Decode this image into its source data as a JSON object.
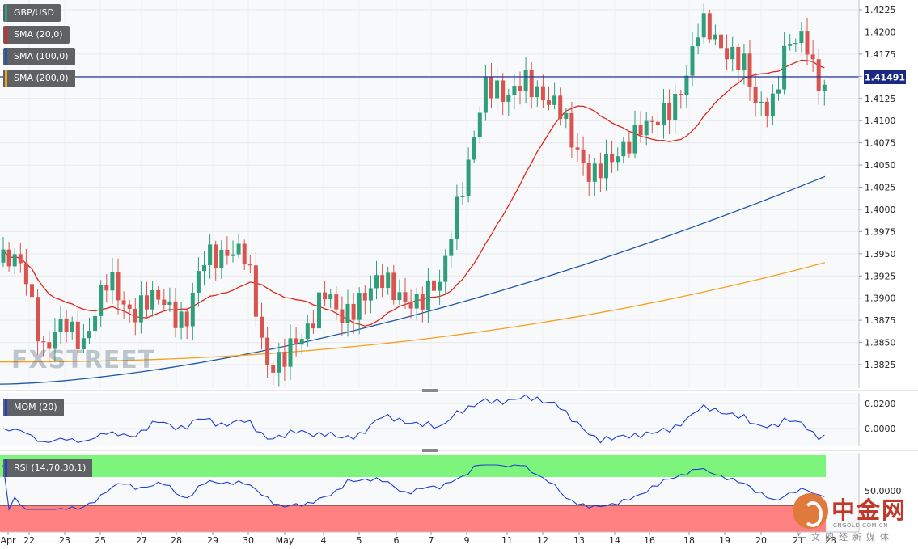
{
  "chart_data": {
    "type": "candlestick",
    "symbol": "GBP/USD",
    "last_price": "1.41491",
    "ylim": [
      1.38,
      1.424
    ],
    "y_ticks": [
      "1.4225",
      "1.4200",
      "1.4175",
      "1.4150",
      "1.4125",
      "1.4100",
      "1.4075",
      "1.4050",
      "1.4025",
      "1.4000",
      "1.3975",
      "1.3950",
      "1.3925",
      "1.3900",
      "1.3875",
      "1.3850",
      "1.3825"
    ],
    "x_tick_labels": [
      "Apr",
      "22",
      "23",
      "25",
      "27",
      "28",
      "29",
      "30",
      "May",
      "4",
      "5",
      "6",
      "7",
      "9",
      "11",
      "12",
      "13",
      "14",
      "16",
      "18",
      "19",
      "20",
      "21",
      "23"
    ],
    "indicators": [
      {
        "label": "SMA (20,0)",
        "color": "#e0261b"
      },
      {
        "label": "SMA (100,0)",
        "color": "#1f57a6"
      },
      {
        "label": "SMA (200,0)",
        "color": "#f5a11f"
      }
    ],
    "sma100_end": [
      1.3803,
      1.4037
    ],
    "sma200_end": [
      1.3828,
      1.394
    ],
    "anchors": [
      [
        0,
        1.394
      ],
      [
        30,
        1.3935
      ],
      [
        55,
        1.3838
      ],
      [
        80,
        1.387
      ],
      [
        105,
        1.3855
      ],
      [
        135,
        1.392
      ],
      [
        165,
        1.3885
      ],
      [
        205,
        1.39
      ],
      [
        230,
        1.387
      ],
      [
        255,
        1.395
      ],
      [
        280,
        1.3955
      ],
      [
        305,
        1.394
      ],
      [
        330,
        1.383
      ],
      [
        350,
        1.3825
      ],
      [
        375,
        1.386
      ],
      [
        400,
        1.391
      ],
      [
        420,
        1.387
      ],
      [
        445,
        1.3905
      ],
      [
        470,
        1.3915
      ],
      [
        500,
        1.3905
      ],
      [
        520,
        1.389
      ],
      [
        545,
        1.392
      ],
      [
        560,
        1.3995
      ],
      [
        580,
        1.4045
      ],
      [
        600,
        1.414
      ],
      [
        612,
        1.4145
      ],
      [
        630,
        1.4125
      ],
      [
        650,
        1.414
      ],
      [
        670,
        1.4135
      ],
      [
        690,
        1.4115
      ],
      [
        705,
        1.4075
      ],
      [
        730,
        1.4045
      ],
      [
        760,
        1.405
      ],
      [
        790,
        1.41
      ],
      [
        810,
        1.409
      ],
      [
        830,
        1.4115
      ],
      [
        850,
        1.416
      ],
      [
        865,
        1.4205
      ],
      [
        885,
        1.419
      ],
      [
        905,
        1.418
      ],
      [
        920,
        1.416
      ],
      [
        935,
        1.411
      ],
      [
        955,
        1.4125
      ],
      [
        970,
        1.418
      ],
      [
        985,
        1.4185
      ],
      [
        1000,
        1.4185
      ],
      [
        1008,
        1.415
      ],
      [
        1020,
        1.4145
      ]
    ],
    "mom": {
      "label": "MOM (20)",
      "y_ticks": [
        "0.0200",
        "0.0000"
      ]
    },
    "rsi": {
      "label": "RSI (14,70,30,1)",
      "y_ticks": [
        "50.0000"
      ]
    }
  },
  "brand": {
    "name": "中金网",
    "url": "CNGOLD.COM.CN",
    "sub": "午文网经新媒体"
  },
  "watermark": "FXSTREET"
}
